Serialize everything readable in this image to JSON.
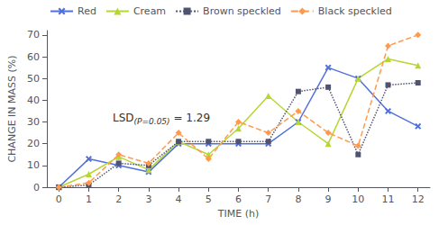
{
  "chart_data": {
    "type": "line",
    "x": [
      0,
      1,
      2,
      3,
      4,
      5,
      6,
      7,
      8,
      9,
      10,
      11,
      12
    ],
    "series": [
      {
        "name": "Red",
        "values": [
          0,
          13,
          10,
          7,
          20,
          20,
          20,
          20,
          30,
          55,
          50,
          35,
          28
        ],
        "marker": "x",
        "line_style": "solid"
      },
      {
        "name": "Cream",
        "values": [
          0,
          6,
          14,
          8,
          21,
          15,
          27,
          42,
          30,
          20,
          50,
          59,
          56
        ],
        "marker": "triangle",
        "line_style": "solid"
      },
      {
        "name": "Brown speckled",
        "values": [
          0,
          1,
          11,
          10,
          21,
          21,
          21,
          21,
          44,
          46,
          15,
          47,
          48
        ],
        "marker": "square",
        "line_style": "dotted"
      },
      {
        "name": "Black speckled",
        "values": [
          0,
          2,
          15,
          11,
          25,
          13,
          30,
          25,
          35,
          25,
          19,
          65,
          70
        ],
        "marker": "diamond",
        "line_style": "dashed"
      }
    ],
    "xlabel": "TIME (h)",
    "ylabel": "CHANGE IN MASS (%)",
    "xlim": [
      -0.4,
      12.4
    ],
    "xticks": [
      0,
      1,
      2,
      3,
      4,
      5,
      6,
      7,
      8,
      9,
      10,
      11,
      12
    ],
    "ylim": [
      0,
      72
    ],
    "yticks": [
      0,
      10,
      20,
      30,
      40,
      50,
      60,
      70
    ],
    "annotations": [
      {
        "text": "LSD",
        "sub": "(P=0.05)",
        "after": "= 1.29",
        "x": 1.8,
        "y": 32
      }
    ],
    "legend": "upper left",
    "grid": false
  }
}
